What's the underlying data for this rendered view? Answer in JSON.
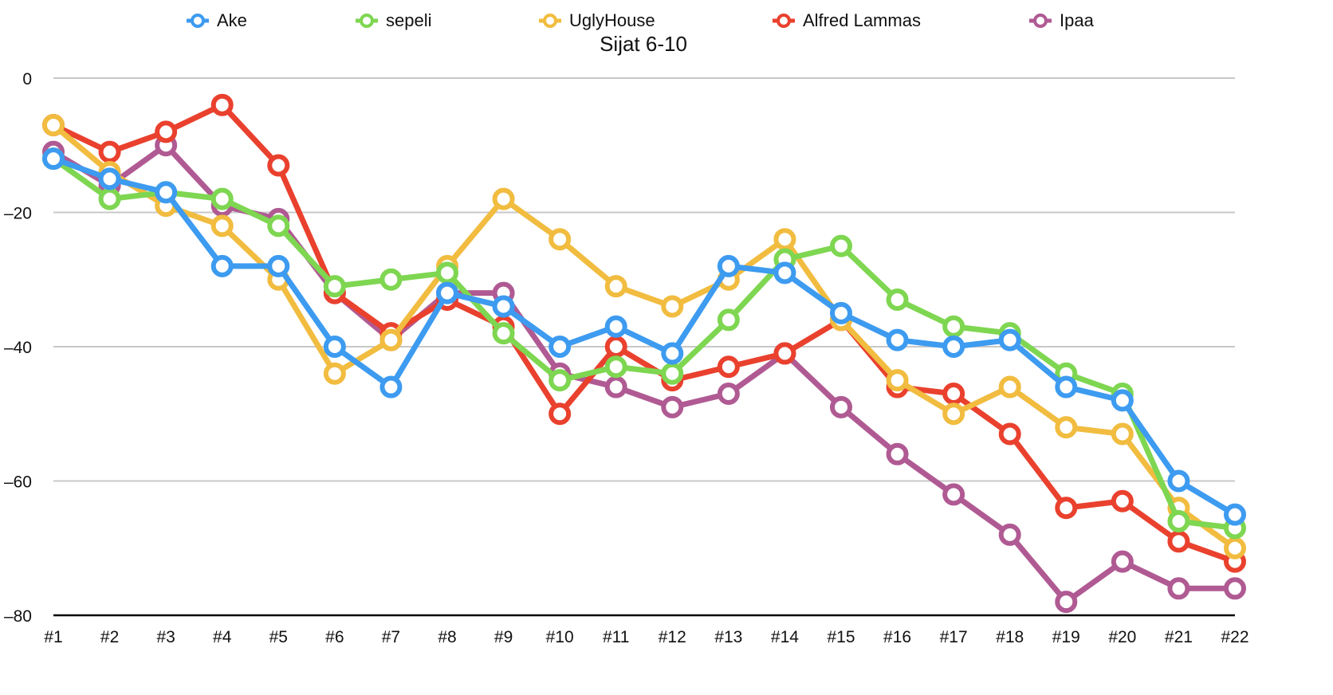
{
  "chart_data": {
    "type": "line",
    "title": "Sijat 6-10",
    "xlabel": "",
    "ylabel": "",
    "ylim": [
      -80,
      0
    ],
    "yticks": [
      0,
      -20,
      -40,
      -60,
      -80
    ],
    "ytick_labels": [
      "0",
      "–20",
      "–40",
      "–60",
      "–80"
    ],
    "grid": true,
    "legend_position": "top",
    "categories": [
      "#1",
      "#2",
      "#3",
      "#4",
      "#5",
      "#6",
      "#7",
      "#8",
      "#9",
      "#10",
      "#11",
      "#12",
      "#13",
      "#14",
      "#15",
      "#16",
      "#17",
      "#18",
      "#19",
      "#20",
      "#21",
      "#22"
    ],
    "series": [
      {
        "name": "Ipaa",
        "color": "#b05a93",
        "values": [
          -11,
          -16,
          -10,
          -19,
          -21,
          -32,
          -39,
          -32,
          -32,
          -44,
          -46,
          -49,
          -47,
          -41,
          -49,
          -56,
          -62,
          -68,
          -78,
          -72,
          -76,
          -76
        ]
      },
      {
        "name": "Alfred Lammas",
        "color": "#e9412e",
        "values": [
          -7,
          -11,
          -8,
          -4,
          -13,
          -32,
          -38,
          -33,
          -37,
          -50,
          -40,
          -45,
          -43,
          -41,
          -36,
          -46,
          -47,
          -53,
          -64,
          -63,
          -69,
          -72
        ]
      },
      {
        "name": "UglyHouse",
        "color": "#f1bc3f",
        "values": [
          -7,
          -14,
          -19,
          -22,
          -30,
          -44,
          -39,
          -28,
          -18,
          -24,
          -31,
          -34,
          -30,
          -24,
          -36,
          -45,
          -50,
          -46,
          -52,
          -53,
          -64,
          -70
        ]
      },
      {
        "name": "sepeli",
        "color": "#7ed651",
        "values": [
          -12,
          -18,
          -17,
          -18,
          -22,
          -31,
          -30,
          -29,
          -38,
          -45,
          -43,
          -44,
          -36,
          -27,
          -25,
          -33,
          -37,
          -38,
          -44,
          -47,
          -66,
          -67
        ]
      },
      {
        "name": "Ake",
        "color": "#3d9bf0",
        "values": [
          -12,
          -15,
          -17,
          -28,
          -28,
          -40,
          -46,
          -32,
          -34,
          -40,
          -37,
          -41,
          -28,
          -29,
          -35,
          -39,
          -40,
          -39,
          -46,
          -48,
          -60,
          -65
        ]
      }
    ],
    "legend_order": [
      "Ake",
      "sepeli",
      "UglyHouse",
      "Alfred Lammas",
      "Ipaa"
    ]
  }
}
